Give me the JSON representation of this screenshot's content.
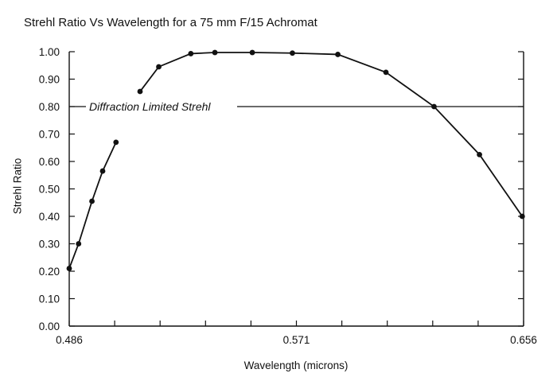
{
  "chart_data": {
    "type": "line",
    "title": "Strehl Ratio Vs Wavelength for a 75 mm F/15 Achromat",
    "xlabel": "Wavelength (microns)",
    "ylabel": "Strehl Ratio",
    "xlim": [
      0.486,
      0.656
    ],
    "ylim": [
      0.0,
      1.0
    ],
    "x_ticks": [
      "0.486",
      "0.571",
      "0.656"
    ],
    "y_ticks": [
      "0.00",
      "0.10",
      "0.20",
      "0.30",
      "0.40",
      "0.50",
      "0.60",
      "0.70",
      "0.80",
      "0.90",
      "1.00"
    ],
    "grid": false,
    "series": [
      {
        "x": [
          0.486,
          0.4895,
          0.4945,
          0.4985,
          0.5035
        ],
        "values": [
          0.21,
          0.3,
          0.455,
          0.565,
          0.67
        ]
      },
      {
        "x": [
          0.5125,
          0.5195,
          0.5315,
          0.5405,
          0.5545,
          0.5695,
          0.5865,
          0.6045,
          0.6225,
          0.6395,
          0.6555
        ],
        "values": [
          0.855,
          0.945,
          0.993,
          0.997,
          0.997,
          0.995,
          0.99,
          0.925,
          0.8,
          0.625,
          0.4
        ]
      }
    ],
    "reference_line": {
      "value": 0.8,
      "label": "Diffraction Limited Strehl"
    }
  }
}
